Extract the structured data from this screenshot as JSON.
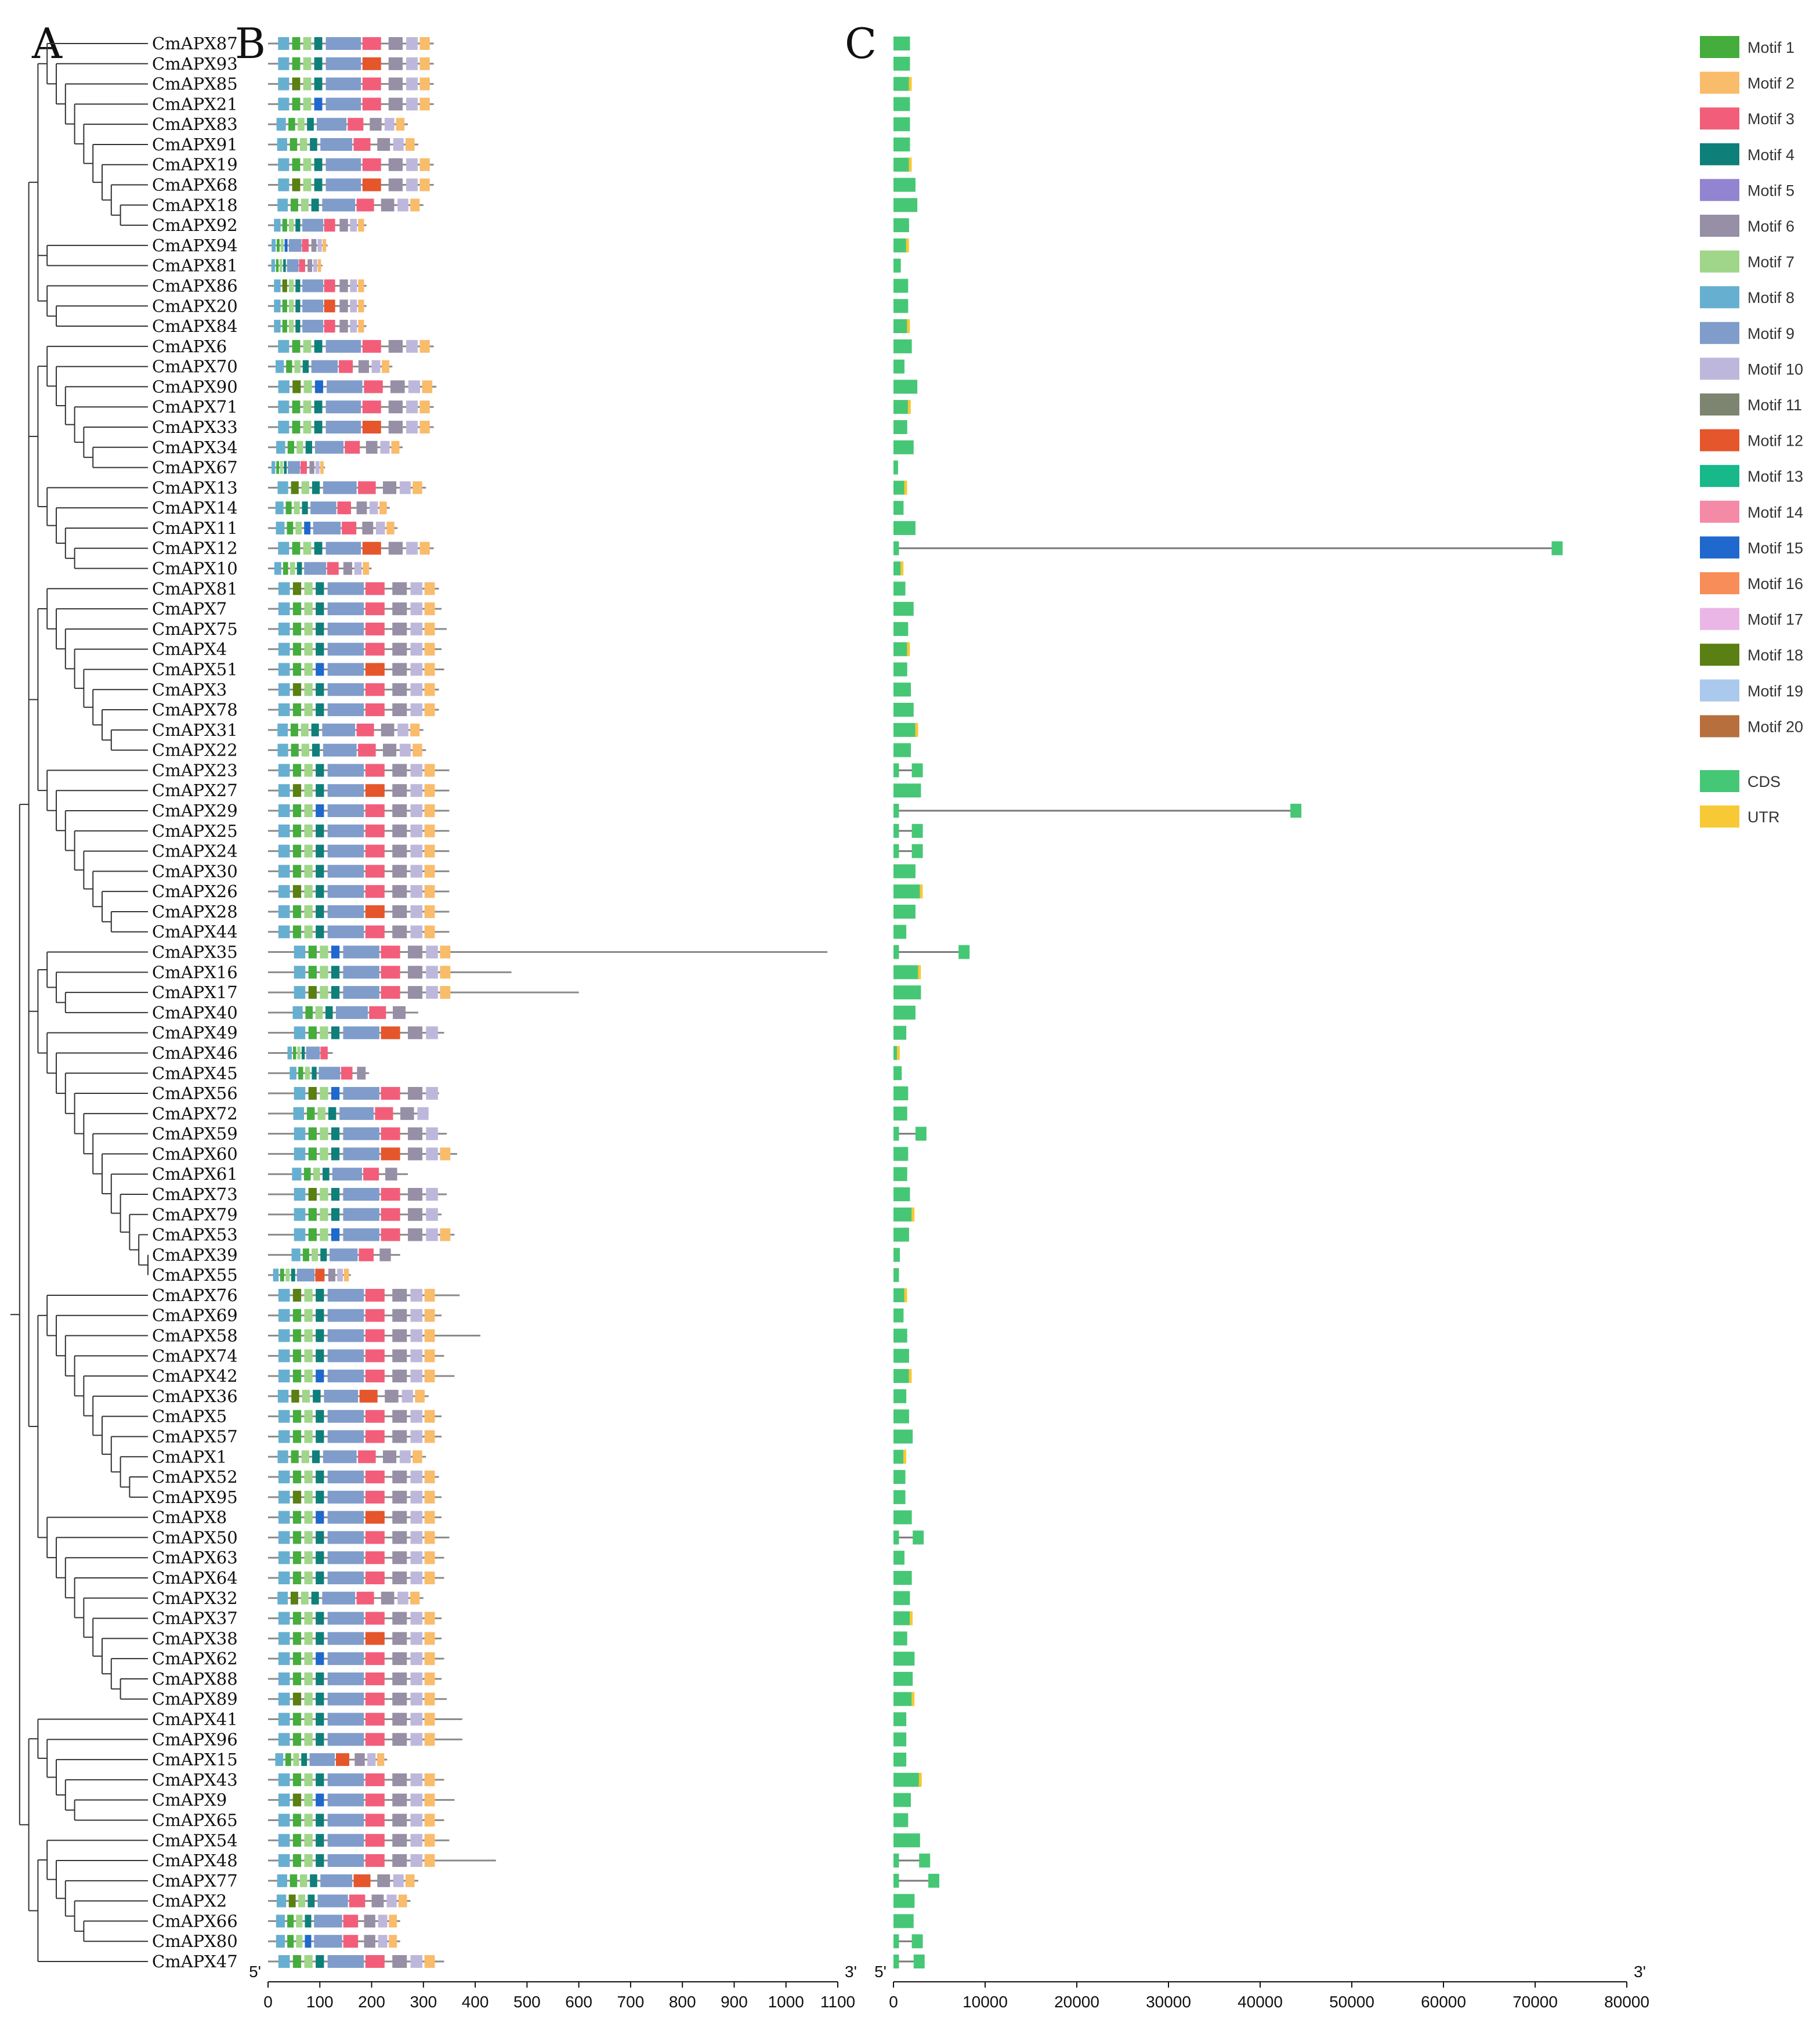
{
  "panels": {
    "a": "A",
    "b": "B",
    "c": "C"
  },
  "genes": [
    "CmAPX87",
    "CmAPX93",
    "CmAPX85",
    "CmAPX21",
    "CmAPX83",
    "CmAPX91",
    "CmAPX19",
    "CmAPX68",
    "CmAPX18",
    "CmAPX92",
    "CmAPX94",
    "CmAPX81",
    "CmAPX86",
    "CmAPX20",
    "CmAPX84",
    "CmAPX6",
    "CmAPX70",
    "CmAPX90",
    "CmAPX71",
    "CmAPX33",
    "CmAPX34",
    "CmAPX67",
    "CmAPX13",
    "CmAPX14",
    "CmAPX11",
    "CmAPX12",
    "CmAPX10",
    "CmAPX81",
    "CmAPX7",
    "CmAPX75",
    "CmAPX4",
    "CmAPX51",
    "CmAPX3",
    "CmAPX78",
    "CmAPX31",
    "CmAPX22",
    "CmAPX23",
    "CmAPX27",
    "CmAPX29",
    "CmAPX25",
    "CmAPX24",
    "CmAPX30",
    "CmAPX26",
    "CmAPX28",
    "CmAPX44",
    "CmAPX35",
    "CmAPX16",
    "CmAPX17",
    "CmAPX40",
    "CmAPX49",
    "CmAPX46",
    "CmAPX45",
    "CmAPX56",
    "CmAPX72",
    "CmAPX59",
    "CmAPX60",
    "CmAPX61",
    "CmAPX73",
    "CmAPX79",
    "CmAPX53",
    "CmAPX39",
    "CmAPX55",
    "CmAPX76",
    "CmAPX69",
    "CmAPX58",
    "CmAPX74",
    "CmAPX42",
    "CmAPX36",
    "CmAPX5",
    "CmAPX57",
    "CmAPX1",
    "CmAPX52",
    "CmAPX95",
    "CmAPX8",
    "CmAPX50",
    "CmAPX63",
    "CmAPX64",
    "CmAPX32",
    "CmAPX37",
    "CmAPX38",
    "CmAPX62",
    "CmAPX88",
    "CmAPX89",
    "CmAPX41",
    "CmAPX96",
    "CmAPX15",
    "CmAPX43",
    "CmAPX9",
    "CmAPX65",
    "CmAPX54",
    "CmAPX48",
    "CmAPX77",
    "CmAPX2",
    "CmAPX66",
    "CmAPX80",
    "CmAPX47"
  ],
  "protein_lengths": [
    320,
    320,
    320,
    320,
    270,
    290,
    320,
    320,
    300,
    190,
    115,
    105,
    190,
    190,
    190,
    320,
    240,
    325,
    320,
    320,
    260,
    110,
    305,
    235,
    250,
    320,
    200,
    330,
    335,
    345,
    335,
    340,
    330,
    330,
    300,
    305,
    350,
    350,
    350,
    350,
    350,
    350,
    350,
    350,
    350,
    1080,
    470,
    600,
    290,
    340,
    125,
    195,
    330,
    310,
    345,
    365,
    270,
    345,
    335,
    360,
    255,
    160,
    370,
    335,
    410,
    340,
    360,
    310,
    335,
    335,
    305,
    330,
    335,
    335,
    350,
    340,
    340,
    300,
    335,
    335,
    340,
    335,
    345,
    375,
    375,
    230,
    340,
    360,
    340,
    350,
    440,
    290,
    275,
    255,
    255,
    340
  ],
  "motif_palette": [
    "#44ad3c",
    "#f9bc6b",
    "#f25e7a",
    "#0f7f7a",
    "#9384d1",
    "#968fa5",
    "#9fd68a",
    "#67afd0",
    "#7f9ccb",
    "#bdb8db",
    "#7d8470",
    "#e5562d",
    "#17b88a",
    "#f58aa7",
    "#1f68cd",
    "#f88d5a",
    "#eab6e6",
    "#5a7f12",
    "#aac9ec",
    "#b7703d"
  ],
  "motif_pattern": [
    {
      "m": 8,
      "s": 20,
      "e": 42
    },
    {
      "m": 1,
      "s": 48,
      "e": 64
    },
    {
      "m": 7,
      "s": 70,
      "e": 86
    },
    {
      "m": 4,
      "s": 92,
      "e": 108
    },
    {
      "m": 9,
      "s": 115,
      "e": 185
    },
    {
      "m": 3,
      "s": 188,
      "e": 225
    },
    {
      "m": 6,
      "s": 240,
      "e": 268
    },
    {
      "m": 10,
      "s": 275,
      "e": 298
    },
    {
      "m": 2,
      "s": 302,
      "e": 322
    }
  ],
  "motif_axis": {
    "ticks": [
      "0",
      "100",
      "200",
      "300",
      "400",
      "500",
      "600",
      "700",
      "800",
      "900",
      "1000",
      "1100"
    ],
    "max": 1100,
    "left": "5'",
    "right": "3'"
  },
  "gene_axis": {
    "ticks": [
      "0",
      "10000",
      "20000",
      "30000",
      "40000",
      "50000",
      "60000",
      "70000",
      "80000"
    ],
    "max": 80000,
    "left": "5'",
    "right": "3'"
  },
  "gene_lengths": [
    1800,
    1800,
    1800,
    1800,
    1800,
    1800,
    1800,
    2400,
    2600,
    1700,
    1500,
    800,
    1600,
    1600,
    1600,
    2000,
    1200,
    2600,
    1700,
    1500,
    2200,
    500,
    1300,
    1100,
    2400,
    73000,
    900,
    1300,
    2200,
    1600,
    1600,
    1500,
    1900,
    2200,
    2500,
    1900,
    3200,
    3000,
    44500,
    3200,
    3200,
    2400,
    3000,
    2400,
    1400,
    8300,
    2800,
    3000,
    2400,
    1400,
    500,
    900,
    1600,
    1500,
    3600,
    1600,
    1500,
    1800,
    2100,
    1700,
    700,
    600,
    1300,
    1100,
    1500,
    1700,
    1800,
    1400,
    1700,
    2100,
    1200,
    1300,
    1300,
    2000,
    3300,
    1200,
    2000,
    1800,
    1900,
    1500,
    2300,
    2100,
    2100,
    1400,
    1400,
    1400,
    2900,
    1900,
    1600,
    2900,
    4000,
    5000,
    2300,
    2200,
    3200,
    3400
  ],
  "legend": {
    "motifs": [
      "Motif 1",
      "Motif 2",
      "Motif 3",
      "Motif 4",
      "Motif 5",
      "Motif 6",
      "Motif 7",
      "Motif 8",
      "Motif 9",
      "Motif 10",
      "Motif 11",
      "Motif 12",
      "Motif 13",
      "Motif 14",
      "Motif 15",
      "Motif 16",
      "Motif 17",
      "Motif 18",
      "Motif 19",
      "Motif 20"
    ],
    "features": [
      {
        "label": "CDS",
        "color": "#46c775"
      },
      {
        "label": "UTR",
        "color": "#f7c936"
      }
    ]
  }
}
